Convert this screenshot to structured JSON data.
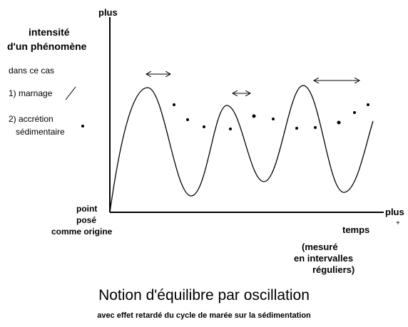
{
  "y_axis": {
    "label": "plus",
    "title": [
      "intensité",
      "d'un phénomène"
    ]
  },
  "legend": {
    "heading": "dans ce cas",
    "items": [
      "1) marnage",
      "2) accrétion",
      "sédimentaire"
    ]
  },
  "origin": [
    "point",
    "posé",
    "comme origine"
  ],
  "x_axis": {
    "label": "plus",
    "sign": "+",
    "title": "temps",
    "note": [
      "(mesuré",
      "en intervalles",
      "réguliers)"
    ]
  },
  "header": {
    "title": "Notion d'équilibre par oscillation",
    "subtitle": "avec effet retardé du cycle de marée sur la sédimentation"
  }
}
